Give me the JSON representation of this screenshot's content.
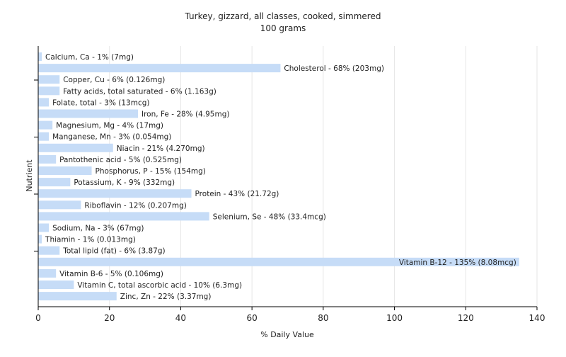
{
  "chart_data": {
    "type": "bar",
    "orientation": "horizontal",
    "title": "Turkey, gizzard, all classes, cooked, simmered",
    "subtitle": "100 grams",
    "xlabel": "% Daily Value",
    "ylabel": "Nutrient",
    "xlim": [
      0,
      140
    ],
    "xticks": [
      0,
      20,
      40,
      60,
      80,
      100,
      120,
      140
    ],
    "grid": true,
    "bar_color": "#c6dcf7",
    "categories": [
      "Calcium, Ca",
      "Cholesterol",
      "Copper, Cu",
      "Fatty acids, total saturated",
      "Folate, total",
      "Iron, Fe",
      "Magnesium, Mg",
      "Manganese, Mn",
      "Niacin",
      "Pantothenic acid",
      "Phosphorus, P",
      "Potassium, K",
      "Protein",
      "Riboflavin",
      "Selenium, Se",
      "Sodium, Na",
      "Thiamin",
      "Total lipid (fat)",
      "Vitamin B-12",
      "Vitamin B-6",
      "Vitamin C, total ascorbic acid",
      "Zinc, Zn"
    ],
    "values": [
      1,
      68,
      6,
      6,
      3,
      28,
      4,
      3,
      21,
      5,
      15,
      9,
      43,
      12,
      48,
      3,
      1,
      6,
      135,
      5,
      10,
      22
    ],
    "labels": [
      "Calcium, Ca - 1% (7mg)",
      "Cholesterol - 68% (203mg)",
      "Copper, Cu - 6% (0.126mg)",
      "Fatty acids, total saturated - 6% (1.163g)",
      "Folate, total - 3% (13mcg)",
      "Iron, Fe - 28% (4.95mg)",
      "Magnesium, Mg - 4% (17mg)",
      "Manganese, Mn - 3% (0.054mg)",
      "Niacin - 21% (4.270mg)",
      "Pantothenic acid - 5% (0.525mg)",
      "Phosphorus, P - 15% (154mg)",
      "Potassium, K - 9% (332mg)",
      "Protein - 43% (21.72g)",
      "Riboflavin - 12% (0.207mg)",
      "Selenium, Se - 48% (33.4mcg)",
      "Sodium, Na - 3% (67mg)",
      "Thiamin - 1% (0.013mg)",
      "Total lipid (fat) - 6% (3.87g)",
      "Vitamin B-12 - 135% (8.08mcg)",
      "Vitamin B-6 - 5% (0.106mg)",
      "Vitamin C, total ascorbic acid - 10% (6.3mg)",
      "Zinc, Zn - 22% (3.37mg)"
    ]
  }
}
